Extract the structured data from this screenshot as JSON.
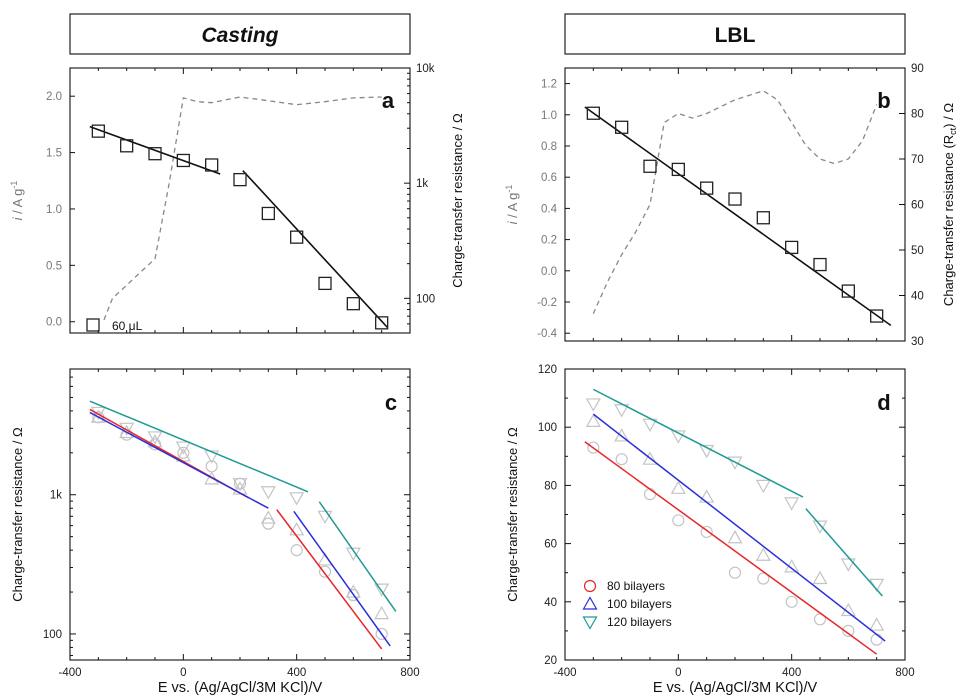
{
  "headers": {
    "left": "Casting",
    "right": "LBL"
  },
  "chart_data": [
    {
      "id": "a",
      "type": "scatter",
      "panel_label": "a",
      "ylabel_left": "i / A g-1",
      "ylabel_right": "Charge-transfer resistance / Ω",
      "x_range": [
        -400,
        800
      ],
      "ylim_left": [
        -0.1,
        2.25
      ],
      "ylim_right_log": [
        50,
        10000
      ],
      "yticks_left": [
        0.0,
        0.5,
        1.0,
        1.5,
        2.0
      ],
      "yticks_left_labels": [
        "0.0",
        "0.5",
        "1.0",
        "1.5",
        "2.0"
      ],
      "yticks_right": [
        100,
        1000,
        10000
      ],
      "yticks_right_labels": [
        "100",
        "1k",
        "10k"
      ],
      "legend": "60 μL",
      "legend_position": "bottom-left",
      "points": {
        "x": [
          -300,
          -200,
          -100,
          0,
          100,
          200,
          300,
          400,
          500,
          600,
          700
        ],
        "y": [
          1.69,
          1.56,
          1.49,
          1.43,
          1.39,
          1.26,
          0.96,
          0.75,
          0.34,
          0.16,
          -0.01
        ]
      },
      "fit_lines": [
        {
          "x": [
            -330,
            130
          ],
          "y": [
            1.73,
            1.31
          ]
        },
        {
          "x": [
            210,
            720
          ],
          "y": [
            1.34,
            -0.05
          ]
        }
      ],
      "dashed_resistance": {
        "x": [
          -280,
          -250,
          -200,
          -150,
          -100,
          -50,
          0,
          50,
          100,
          150,
          200,
          300,
          400,
          500,
          600,
          700
        ],
        "r": [
          65,
          100,
          130,
          170,
          220,
          1000,
          5500,
          5100,
          5000,
          5300,
          5600,
          5200,
          4800,
          5100,
          5500,
          5600
        ]
      }
    },
    {
      "id": "b",
      "type": "scatter",
      "panel_label": "b",
      "ylabel_left": "i / A g-1",
      "ylabel_right": "Charge-transfer resistance (Rct) / Ω",
      "x_range": [
        -400,
        800
      ],
      "ylim_left": [
        -0.45,
        1.3
      ],
      "ylim_right": [
        30,
        90
      ],
      "yticks_left": [
        -0.4,
        -0.2,
        0.0,
        0.2,
        0.4,
        0.6,
        0.8,
        1.0,
        1.2
      ],
      "yticks_left_labels": [
        "-0.4",
        "-0.2",
        "0.0",
        "0.2",
        "0.4",
        "0.6",
        "0.8",
        "1.0",
        "1.2"
      ],
      "yticks_right": [
        30,
        40,
        50,
        60,
        70,
        80,
        90
      ],
      "yticks_right_labels": [
        "30",
        "40",
        "50",
        "60",
        "70",
        "80",
        "90"
      ],
      "points": {
        "x": [
          -300,
          -200,
          -100,
          0,
          100,
          200,
          300,
          400,
          500,
          600,
          700
        ],
        "y": [
          1.01,
          0.92,
          0.67,
          0.65,
          0.53,
          0.46,
          0.34,
          0.15,
          0.04,
          -0.13,
          -0.29
        ]
      },
      "fit_lines": [
        {
          "x": [
            -330,
            750
          ],
          "y": [
            1.05,
            -0.35
          ]
        }
      ],
      "dashed_resistance": {
        "x": [
          -300,
          -250,
          -200,
          -150,
          -100,
          -50,
          0,
          50,
          100,
          200,
          300,
          350,
          400,
          450,
          500,
          550,
          600,
          650,
          700
        ],
        "r": [
          36,
          43,
          49,
          54,
          60,
          78,
          80,
          79,
          80,
          83,
          85,
          83,
          78,
          73,
          70,
          69,
          70,
          74,
          82
        ]
      }
    },
    {
      "id": "c",
      "type": "scatter",
      "panel_label": "c",
      "xlabel": "E vs. (Ag/AgCl/3M KCl)/V",
      "ylabel": "Charge-transfer resistance / Ω",
      "x_range": [
        -400,
        800
      ],
      "xticks": [
        -400,
        0,
        400,
        800
      ],
      "xticks_labels": [
        "-400",
        "0",
        "400",
        "800"
      ],
      "ylim_log": [
        65,
        8000
      ],
      "yticks": [
        100,
        1000
      ],
      "yticks_labels": [
        "100",
        "1k"
      ],
      "series": [
        {
          "name": "80 bilayers",
          "color": "#e8262a",
          "marker": "circle",
          "points": {
            "x": [
              -300,
              -200,
              -100,
              0,
              100,
              200,
              300,
              400,
              500,
              600,
              700
            ],
            "y": [
              3600,
              2700,
              2300,
              2000,
              1600,
              1200,
              620,
              400,
              280,
              190,
              100
            ]
          },
          "fit_lines": [
            {
              "x": [
                -330,
                230
              ],
              "y": [
                4100,
                950
              ]
            },
            {
              "x": [
                330,
                700
              ],
              "y": [
                780,
                78
              ]
            }
          ]
        },
        {
          "name": "100 bilayers",
          "color": "#2b2fd8",
          "marker": "triangle-up",
          "points": {
            "x": [
              -300,
              -200,
              -100,
              0,
              100,
              200,
              300,
              400,
              500,
              600,
              700
            ],
            "y": [
              3600,
              2800,
              2400,
              1900,
              1300,
              1100,
              680,
              560,
              340,
              200,
              140
            ]
          },
          "fit_lines": [
            {
              "x": [
                -330,
                300
              ],
              "y": [
                3900,
                800
              ]
            },
            {
              "x": [
                390,
                730
              ],
              "y": [
                760,
                82
              ]
            }
          ]
        },
        {
          "name": "120 bilayers",
          "color": "#1f9a95",
          "marker": "triangle-down",
          "points": {
            "x": [
              -300,
              -200,
              -100,
              0,
              100,
              200,
              300,
              400,
              500,
              600,
              700
            ],
            "y": [
              3900,
              3000,
              2600,
              2200,
              1900,
              1200,
              1050,
              950,
              700,
              380,
              210
            ]
          },
          "fit_lines": [
            {
              "x": [
                -330,
                440
              ],
              "y": [
                4700,
                1050
              ]
            },
            {
              "x": [
                480,
                750
              ],
              "y": [
                890,
                145
              ]
            }
          ]
        }
      ]
    },
    {
      "id": "d",
      "type": "scatter",
      "panel_label": "d",
      "xlabel": "E vs. (Ag/AgCl/3M KCl)/V",
      "ylabel": "Charge-transfer resistance / Ω",
      "x_range": [
        -400,
        800
      ],
      "xticks": [
        -400,
        0,
        400,
        800
      ],
      "xticks_labels": [
        "-400",
        "0",
        "400",
        "800"
      ],
      "ylim": [
        20,
        120
      ],
      "yticks": [
        20,
        40,
        60,
        80,
        100,
        120
      ],
      "yticks_labels": [
        "20",
        "40",
        "60",
        "80",
        "100",
        "120"
      ],
      "legend_position": "bottom-left",
      "series": [
        {
          "name": "80 bilayers",
          "color": "#e8262a",
          "marker": "circle",
          "points": {
            "x": [
              -300,
              -200,
              -100,
              0,
              100,
              200,
              300,
              400,
              500,
              600,
              700
            ],
            "y": [
              93,
              89,
              77,
              68,
              64,
              50,
              48,
              40,
              34,
              30,
              27
            ]
          },
          "fit_lines": [
            {
              "x": [
                -330,
                700
              ],
              "y": [
                95,
                22
              ]
            }
          ]
        },
        {
          "name": "100 bilayers",
          "color": "#2b2fd8",
          "marker": "triangle-up",
          "points": {
            "x": [
              -300,
              -200,
              -100,
              0,
              100,
              200,
              300,
              400,
              500,
              600,
              700
            ],
            "y": [
              102,
              97,
              89,
              79,
              76,
              62,
              56,
              52,
              48,
              37,
              32
            ]
          },
          "fit_lines": [
            {
              "x": [
                -300,
                730
              ],
              "y": [
                104.5,
                26.5
              ]
            }
          ]
        },
        {
          "name": "120 bilayers",
          "color": "#1f9a95",
          "marker": "triangle-down",
          "points": {
            "x": [
              -300,
              -200,
              -100,
              0,
              100,
              200,
              300,
              400,
              500,
              600,
              700
            ],
            "y": [
              108,
              106,
              101,
              97,
              92,
              88,
              80,
              74,
              66,
              53,
              46
            ]
          },
          "fit_lines": [
            {
              "x": [
                -300,
                440
              ],
              "y": [
                113,
                76
              ]
            },
            {
              "x": [
                450,
                720
              ],
              "y": [
                72,
                42
              ]
            }
          ]
        }
      ]
    }
  ]
}
